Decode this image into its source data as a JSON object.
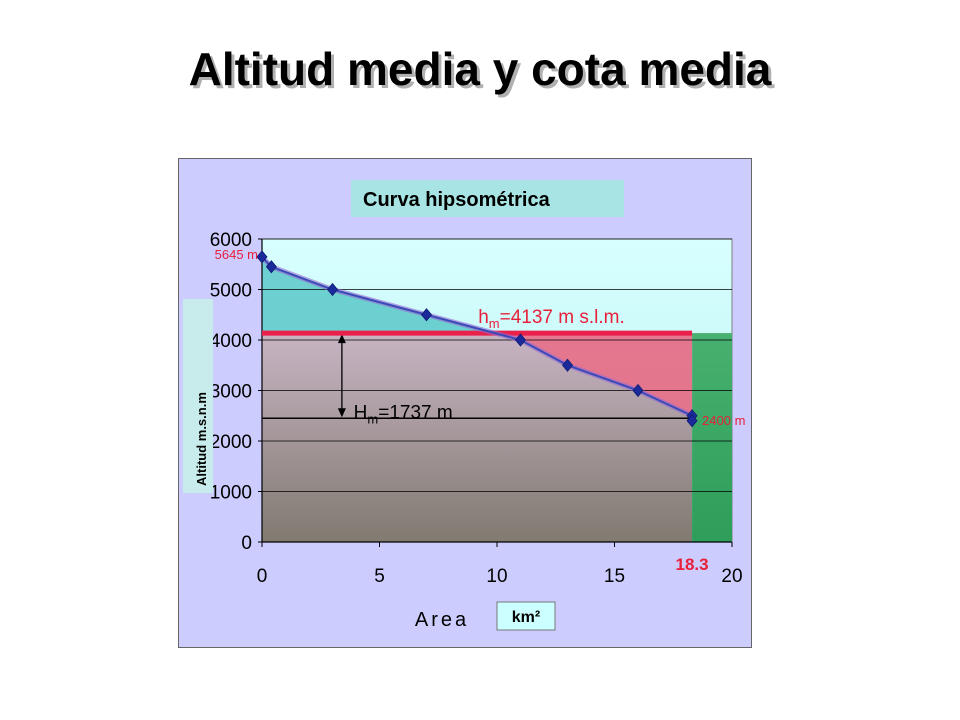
{
  "slide": {
    "title": "Altitud media y cota media"
  },
  "colors": {
    "frame_bg": "#ccccff",
    "plot_bg": "#ccffff",
    "upper_fill": "#5cc8c8",
    "mean_fill": "#e8708a",
    "lower_fill_top": "#c8b4c4",
    "lower_fill_bottom": "#807a70",
    "green_fill": "#2e9e5a",
    "curve": "#3a4ab8",
    "mean_line": "#e8204a",
    "red_label": "#e8203a"
  },
  "chart_data": {
    "type": "line",
    "title": "Curva hipsométrica",
    "xlabel": "Area",
    "xunit": "km²",
    "ylabel": "Altitud m.s.n.m",
    "xlim": [
      0,
      20
    ],
    "ylim": [
      0,
      6000
    ],
    "x_ticks": [
      0,
      5,
      10,
      15,
      20
    ],
    "y_ticks": [
      0,
      1000,
      2000,
      3000,
      4000,
      5000,
      6000
    ],
    "grid": true,
    "series": [
      {
        "x": [
          0,
          0.4,
          3,
          7,
          11,
          13,
          16,
          18.3,
          18.3
        ],
        "y": [
          5645,
          5450,
          5000,
          4500,
          4000,
          3500,
          3000,
          2500,
          2400
        ]
      }
    ],
    "mean_altitude": 4137,
    "min_altitude": 2400,
    "base_reference": 2450,
    "max_area": 18.3,
    "annotations": {
      "top_value": "5645 m",
      "bottom_value": "2400 m",
      "hm_main": "h",
      "hm_sub": "m",
      "hm_rest": "=4137 m s.l.m.",
      "Hm_main": "H",
      "Hm_sub": "m",
      "Hm_rest": "=1737 m",
      "area_value": "18.3"
    }
  }
}
